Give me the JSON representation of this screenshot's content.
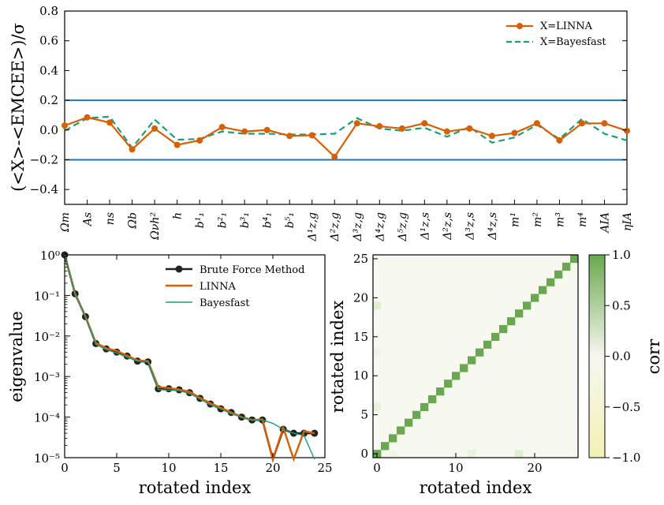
{
  "chart_data": [
    {
      "type": "line",
      "ylabel": "(<X>-<EMCEE>)/σ",
      "ylim": [
        -0.5,
        0.8
      ],
      "yticks": [
        "0.8",
        "0.6",
        "0.4",
        "0.2",
        "0.0",
        "−0.2",
        "−0.4"
      ],
      "ytick_values": [
        0.8,
        0.6,
        0.4,
        0.2,
        0.0,
        -0.2,
        -0.4
      ],
      "hlines": [
        0.2,
        -0.2
      ],
      "categories": [
        "Ωm",
        "As",
        "ns",
        "Ωb",
        "Ωνh²",
        "h",
        "b¹₁",
        "b²₁",
        "b³₁",
        "b⁴₁",
        "b⁵₁",
        "Δ¹z,g",
        "Δ²z,g",
        "Δ³z,g",
        "Δ⁴z,g",
        "Δ⁵z,g",
        "Δ¹z,s",
        "Δ²z,s",
        "Δ³z,s",
        "Δ⁴z,s",
        "m¹",
        "m²",
        "m³",
        "m⁴",
        "AIA",
        "ηIA"
      ],
      "series": [
        {
          "name": "X=LINNA",
          "values": [
            0.03,
            0.085,
            0.05,
            -0.13,
            0.01,
            -0.1,
            -0.07,
            0.02,
            -0.01,
            0.0,
            -0.04,
            -0.035,
            -0.18,
            0.045,
            0.025,
            0.01,
            0.045,
            -0.01,
            0.01,
            -0.04,
            -0.02,
            0.045,
            -0.07,
            0.045,
            0.045,
            -0.005
          ]
        },
        {
          "name": "X=Bayesfast",
          "values": [
            -0.005,
            0.08,
            0.09,
            -0.12,
            0.07,
            -0.065,
            -0.06,
            -0.01,
            -0.025,
            -0.025,
            -0.03,
            -0.03,
            -0.025,
            0.08,
            0.01,
            -0.005,
            0.015,
            -0.045,
            0.02,
            -0.085,
            -0.05,
            0.035,
            -0.06,
            0.075,
            -0.025,
            -0.07
          ]
        }
      ],
      "legend": "top-right"
    },
    {
      "type": "line",
      "xlabel": "rotated index",
      "ylabel": "eigenvalue",
      "yscale": "log",
      "xlim": [
        0,
        25
      ],
      "ylim_exp": [
        -5,
        0
      ],
      "xticks": [
        "0",
        "5",
        "10",
        "15",
        "20",
        "25"
      ],
      "yticks": [
        "10⁰",
        "10⁻¹",
        "10⁻²",
        "10⁻³",
        "10⁻⁴",
        "10⁻⁵"
      ],
      "x": [
        0,
        1,
        2,
        3,
        4,
        5,
        6,
        7,
        8,
        9,
        10,
        11,
        12,
        13,
        14,
        15,
        16,
        17,
        18,
        19,
        20,
        21,
        22,
        23,
        24
      ],
      "series": [
        {
          "name": "Brute Force Method",
          "values": [
            1.0,
            0.11,
            0.03,
            0.0065,
            0.0048,
            0.004,
            0.0032,
            0.0024,
            0.0023,
            0.0005,
            0.0005,
            0.00047,
            0.0004,
            0.00029,
            0.00021,
            0.00016,
            0.00013,
            0.0001,
            8.5e-05,
            8.5e-05,
            8e-06,
            5e-05,
            4e-05,
            4e-05,
            4e-05
          ]
        },
        {
          "name": "LINNA",
          "values": [
            1.0,
            0.11,
            0.03,
            0.0068,
            0.005,
            0.0043,
            0.0033,
            0.0025,
            0.0024,
            0.00055,
            0.00052,
            0.00048,
            0.00042,
            0.0003,
            0.00022,
            0.00017,
            0.00013,
            0.0001,
            8.5e-05,
            8.8e-05,
            8e-06,
            5.5e-05,
            8e-06,
            4.5e-05,
            4e-05
          ]
        },
        {
          "name": "Bayesfast",
          "values": [
            1.0,
            0.11,
            0.03,
            0.0062,
            0.0046,
            0.0038,
            0.003,
            0.0024,
            0.0023,
            0.00048,
            0.00046,
            0.00045,
            0.00038,
            0.00028,
            0.0002,
            0.00016,
            0.00012,
            0.0001,
            8.5e-05,
            8.5e-05,
            7e-05,
            5e-05,
            4e-05,
            3.5e-05,
            8e-06
          ]
        }
      ],
      "legend": "top-right"
    },
    {
      "type": "heatmap",
      "xlabel": "rotated index",
      "ylabel": "rotated index",
      "size": 26,
      "xticks": [
        "0",
        "10",
        "20"
      ],
      "yticks": [
        "0",
        "5",
        "10",
        "15",
        "20",
        "25"
      ],
      "colorbar_label": "corr",
      "colorbar_ticks": [
        "1.0",
        "0.5",
        "0.0",
        "−0.5",
        "−1.0"
      ],
      "colorbar_values": [
        1.0,
        0.5,
        0.0,
        -0.5,
        -1.0
      ],
      "diagonal": 1.0,
      "colors": {
        "pos": "#4d9221",
        "zero": "#f7f7f7",
        "neg": "#f7f4b8"
      }
    }
  ],
  "colors": {
    "linna": "#d95f02",
    "bayesfast": "#1b9e77",
    "brute": "#222222",
    "hline": "#1f77b4"
  }
}
